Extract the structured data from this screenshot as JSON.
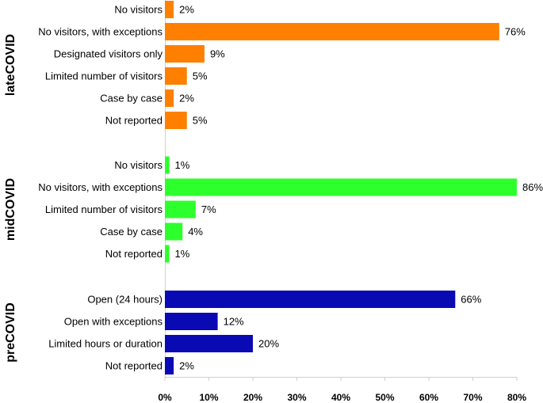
{
  "chart_data": [
    {
      "type": "bar",
      "title": "lateCOVID",
      "orientation": "horizontal",
      "color": "#ff8000",
      "categories": [
        "No visitors",
        "No visitors, with exceptions",
        "Designated visitors only",
        "Limited number of visitors",
        "Case by case",
        "Not reported"
      ],
      "values": [
        2,
        76,
        9,
        5,
        2,
        5
      ],
      "value_labels": [
        "2%",
        "76%",
        "9%",
        "5%",
        "2%",
        "5%"
      ],
      "xlim": [
        0,
        80
      ]
    },
    {
      "type": "bar",
      "title": "midCOVID",
      "orientation": "horizontal",
      "color": "#2dff2d",
      "categories": [
        "No visitors",
        "No visitors, with exceptions",
        "Limited number of visitors",
        "Case by case",
        "Not reported"
      ],
      "values": [
        1,
        86,
        7,
        4,
        1
      ],
      "value_labels": [
        "1%",
        "86%",
        "7%",
        "4%",
        "1%"
      ],
      "xlim": [
        0,
        80
      ]
    },
    {
      "type": "bar",
      "title": "preCOVID",
      "orientation": "horizontal",
      "color": "#0a0ab4",
      "categories": [
        "Open (24 hours)",
        "Open with exceptions",
        "Limited hours or duration",
        "Not reported"
      ],
      "values": [
        66,
        12,
        20,
        2
      ],
      "value_labels": [
        "66%",
        "12%",
        "20%",
        "2%"
      ],
      "xlim": [
        0,
        80
      ],
      "xticks": [
        {
          "value": 0,
          "label": "0%"
        },
        {
          "value": 10,
          "label": "10%"
        },
        {
          "value": 20,
          "label": "20%"
        },
        {
          "value": 30,
          "label": "30%"
        },
        {
          "value": 40,
          "label": "40%"
        },
        {
          "value": 50,
          "label": "50%"
        },
        {
          "value": 60,
          "label": "60%"
        },
        {
          "value": 70,
          "label": "70%"
        },
        {
          "value": 80,
          "label": "80%"
        }
      ]
    }
  ]
}
